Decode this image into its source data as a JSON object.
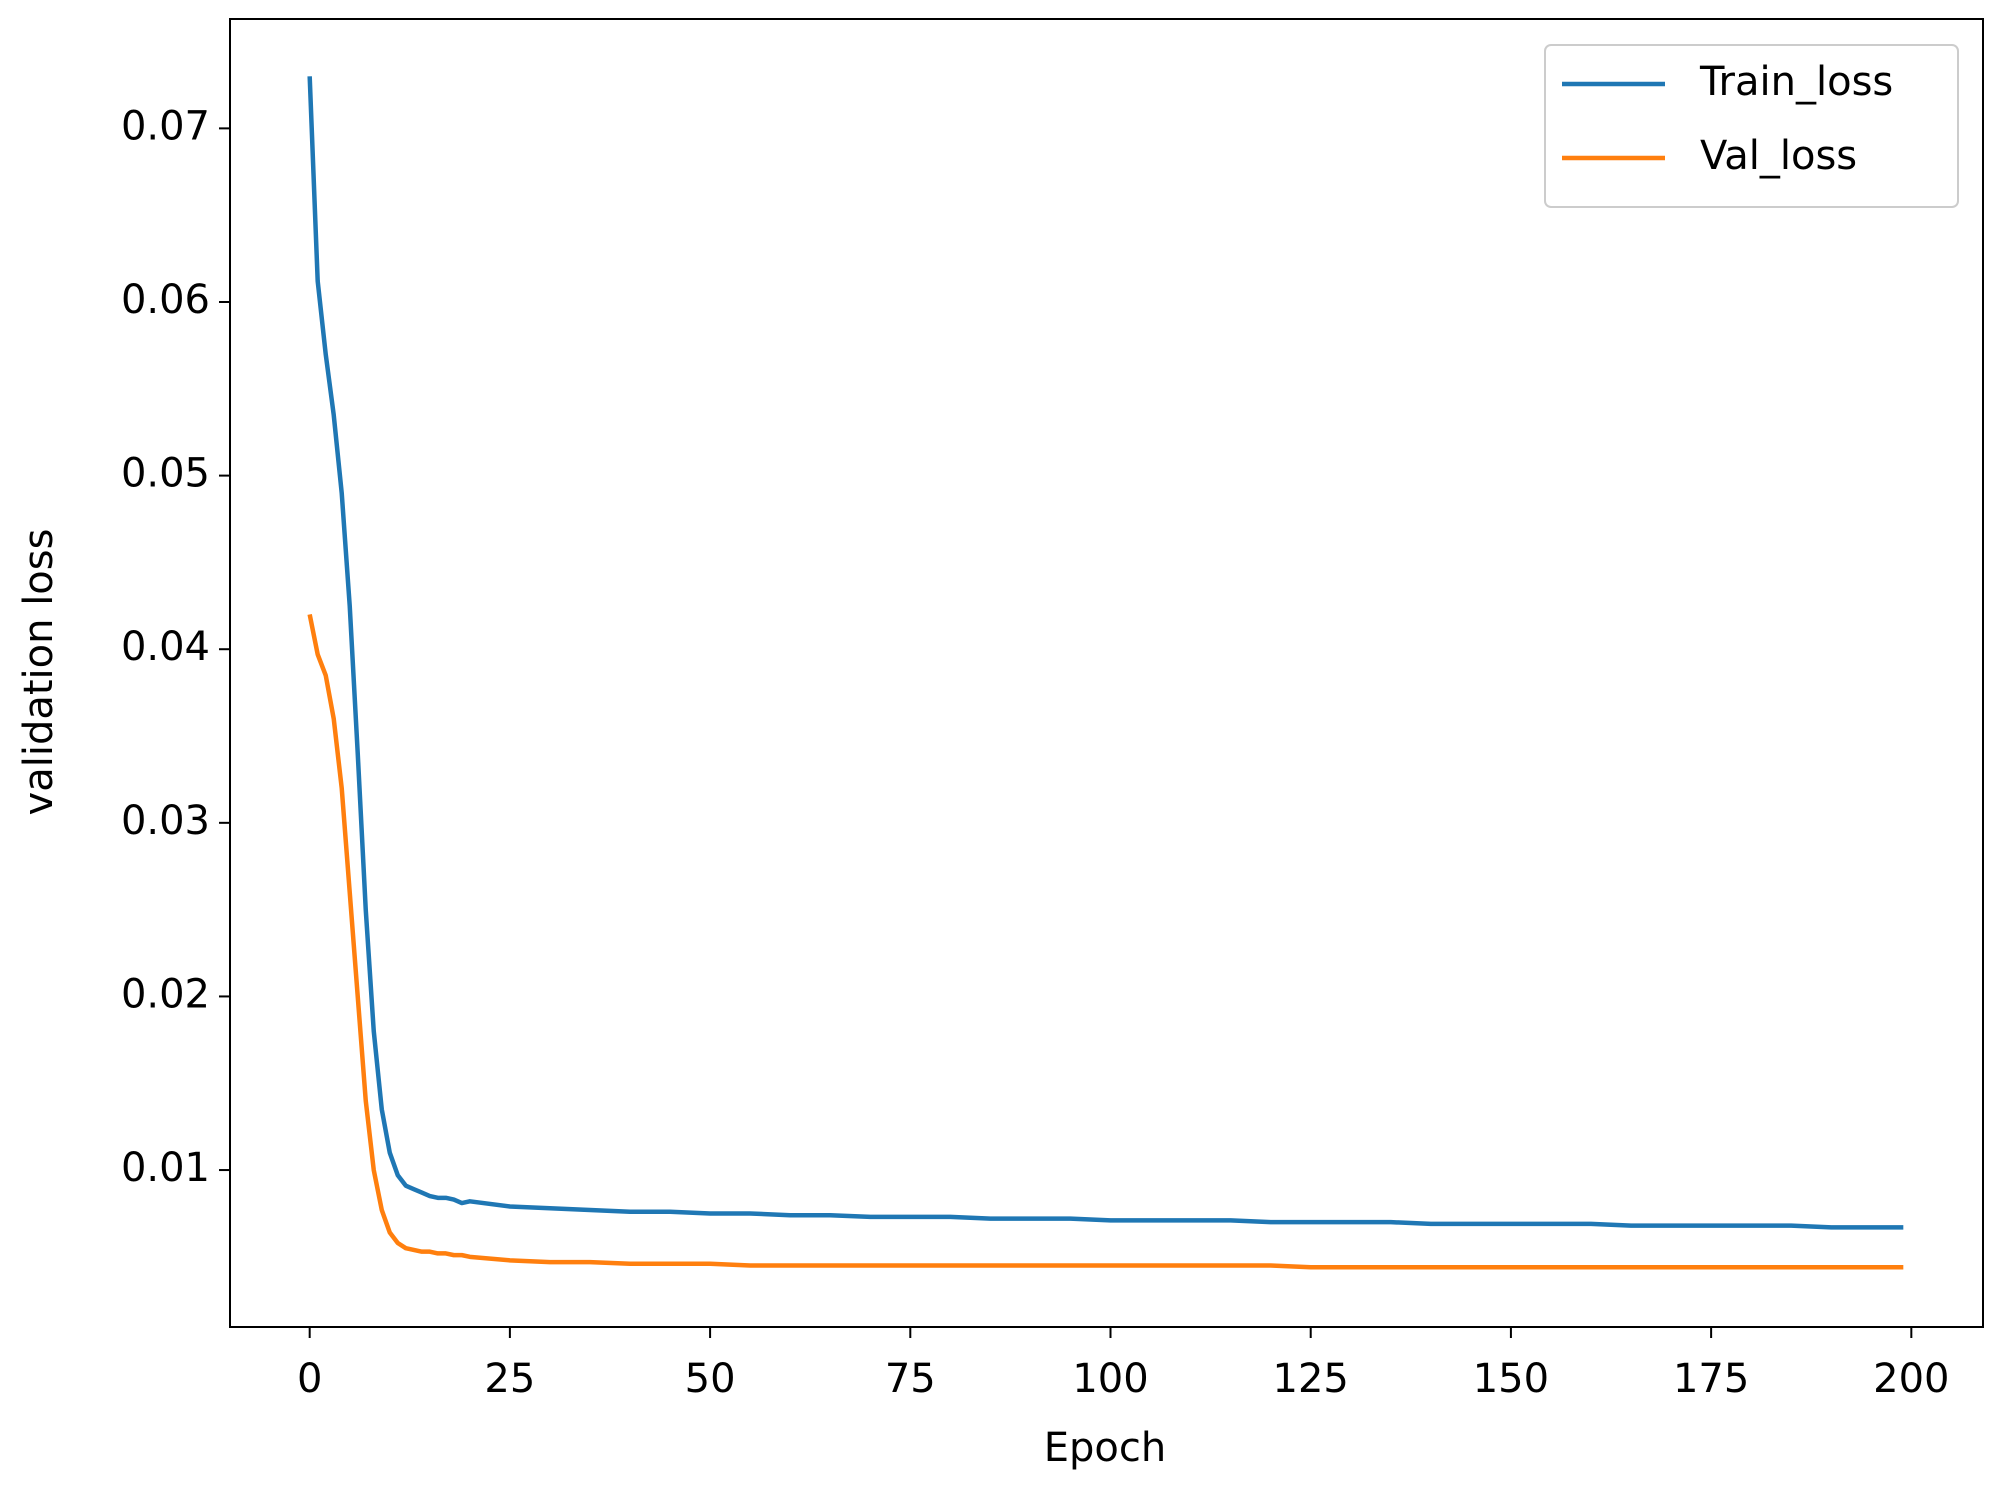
{
  "chart_data": {
    "type": "line",
    "xlabel": "Epoch",
    "ylabel": "validation loss",
    "x": [
      0,
      1,
      2,
      3,
      4,
      5,
      6,
      7,
      8,
      9,
      10,
      11,
      12,
      13,
      14,
      15,
      16,
      17,
      18,
      19,
      20,
      25,
      30,
      35,
      40,
      45,
      50,
      55,
      60,
      65,
      70,
      75,
      80,
      85,
      90,
      95,
      100,
      105,
      110,
      115,
      120,
      125,
      130,
      135,
      140,
      145,
      150,
      155,
      160,
      165,
      170,
      175,
      180,
      185,
      190,
      195,
      199
    ],
    "series": [
      {
        "name": "Train_loss",
        "color": "#1f77b4",
        "values": [
          0.073,
          0.0612,
          0.057,
          0.0535,
          0.049,
          0.0425,
          0.034,
          0.025,
          0.018,
          0.0135,
          0.011,
          0.0097,
          0.0091,
          0.0089,
          0.0087,
          0.0085,
          0.0084,
          0.0084,
          0.0083,
          0.0081,
          0.0082,
          0.0079,
          0.0078,
          0.0077,
          0.0076,
          0.0076,
          0.0075,
          0.0075,
          0.0074,
          0.0074,
          0.0073,
          0.0073,
          0.0073,
          0.0072,
          0.0072,
          0.0072,
          0.0071,
          0.0071,
          0.0071,
          0.0071,
          0.007,
          0.007,
          0.007,
          0.007,
          0.0069,
          0.0069,
          0.0069,
          0.0069,
          0.0069,
          0.0068,
          0.0068,
          0.0068,
          0.0068,
          0.0068,
          0.0067,
          0.0067,
          0.0067
        ]
      },
      {
        "name": "Val_loss",
        "color": "#ff7f0e",
        "values": [
          0.042,
          0.0397,
          0.0385,
          0.036,
          0.032,
          0.026,
          0.02,
          0.014,
          0.01,
          0.0077,
          0.0064,
          0.0058,
          0.0055,
          0.0054,
          0.0053,
          0.0053,
          0.0052,
          0.0052,
          0.0051,
          0.0051,
          0.005,
          0.0048,
          0.0047,
          0.0047,
          0.0046,
          0.0046,
          0.0046,
          0.0045,
          0.0045,
          0.0045,
          0.0045,
          0.0045,
          0.0045,
          0.0045,
          0.0045,
          0.0045,
          0.0045,
          0.0045,
          0.0045,
          0.0045,
          0.0045,
          0.0044,
          0.0044,
          0.0044,
          0.0044,
          0.0044,
          0.0044,
          0.0044,
          0.0044,
          0.0044,
          0.0044,
          0.0044,
          0.0044,
          0.0044,
          0.0044,
          0.0044,
          0.0044
        ]
      }
    ],
    "xlim": [
      -9.95,
      208.95
    ],
    "xticks": [
      0,
      25,
      50,
      75,
      100,
      125,
      150,
      175,
      200
    ],
    "ylim": [
      0.00096,
      0.0763
    ],
    "yticks": [
      0.01,
      0.02,
      0.03,
      0.04,
      0.05,
      0.06,
      0.07
    ],
    "grid": false,
    "legend": "upper right"
  }
}
